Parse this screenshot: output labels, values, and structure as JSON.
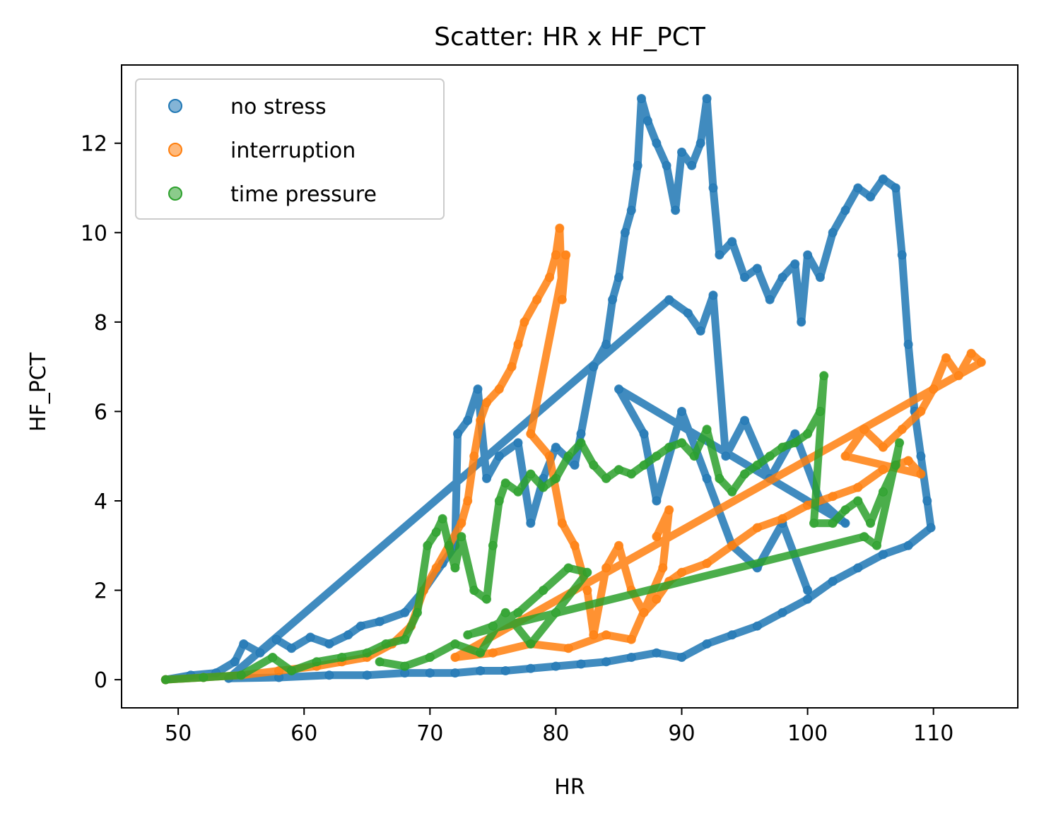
{
  "chart_data": {
    "type": "scatter",
    "title": "Scatter: HR x HF_PCT",
    "xlabel": "HR",
    "ylabel": "HF_PCT",
    "xlim": [
      45.5,
      116.7
    ],
    "ylim": [
      -0.63,
      13.75
    ],
    "xticks": [
      50,
      60,
      70,
      80,
      90,
      100,
      110
    ],
    "yticks": [
      0,
      2,
      4,
      6,
      8,
      10,
      12
    ],
    "grid": false,
    "legend_position": "upper-left",
    "series": [
      {
        "name": "no stress",
        "color": "#1f77b4",
        "points": [
          [
            49.0,
            0.0
          ],
          [
            51.0,
            0.1
          ],
          [
            53.0,
            0.15
          ],
          [
            54.5,
            0.4
          ],
          [
            55.2,
            0.8
          ],
          [
            56.5,
            0.6
          ],
          [
            57.8,
            0.9
          ],
          [
            59.0,
            0.7
          ],
          [
            60.5,
            0.95
          ],
          [
            62.0,
            0.8
          ],
          [
            63.5,
            1.0
          ],
          [
            64.5,
            1.2
          ],
          [
            66.0,
            1.3
          ],
          [
            68.0,
            1.5
          ],
          [
            69.5,
            2.0
          ],
          [
            71.0,
            2.6
          ],
          [
            72.0,
            3.0
          ],
          [
            72.2,
            5.5
          ],
          [
            73.0,
            5.8
          ],
          [
            73.8,
            6.5
          ],
          [
            74.5,
            4.5
          ],
          [
            75.5,
            5.0
          ],
          [
            77.0,
            5.3
          ],
          [
            78.0,
            3.5
          ],
          [
            79.0,
            4.5
          ],
          [
            80.0,
            5.2
          ],
          [
            81.5,
            4.8
          ],
          [
            82.0,
            5.5
          ],
          [
            83.0,
            7.0
          ],
          [
            84.0,
            7.5
          ],
          [
            84.5,
            8.5
          ],
          [
            85.0,
            9.0
          ],
          [
            85.5,
            10.0
          ],
          [
            86.0,
            10.5
          ],
          [
            86.5,
            11.5
          ],
          [
            86.8,
            13.0
          ],
          [
            87.3,
            12.5
          ],
          [
            88.0,
            12.0
          ],
          [
            88.8,
            11.5
          ],
          [
            89.5,
            10.5
          ],
          [
            90.0,
            11.8
          ],
          [
            90.8,
            11.5
          ],
          [
            91.5,
            12.0
          ],
          [
            92.0,
            13.0
          ],
          [
            92.5,
            11.0
          ],
          [
            93.0,
            9.5
          ],
          [
            94.0,
            9.8
          ],
          [
            95.0,
            9.0
          ],
          [
            96.0,
            9.2
          ],
          [
            97.0,
            8.5
          ],
          [
            98.0,
            9.0
          ],
          [
            99.0,
            9.3
          ],
          [
            99.5,
            8.0
          ],
          [
            100.0,
            9.5
          ],
          [
            101.0,
            9.0
          ],
          [
            102.0,
            10.0
          ],
          [
            103.0,
            10.5
          ],
          [
            104.0,
            11.0
          ],
          [
            105.0,
            10.8
          ],
          [
            106.0,
            11.2
          ],
          [
            107.0,
            11.0
          ],
          [
            107.5,
            9.5
          ],
          [
            108.0,
            7.5
          ],
          [
            108.5,
            6.0
          ],
          [
            109.0,
            5.0
          ],
          [
            109.5,
            4.0
          ],
          [
            109.8,
            3.4
          ],
          [
            108.0,
            3.0
          ],
          [
            106.0,
            2.8
          ],
          [
            104.0,
            2.5
          ],
          [
            102.0,
            2.2
          ],
          [
            100.0,
            1.8
          ],
          [
            98.0,
            1.5
          ],
          [
            96.0,
            1.2
          ],
          [
            94.0,
            1.0
          ],
          [
            92.0,
            0.8
          ],
          [
            90.0,
            0.5
          ],
          [
            88.0,
            0.6
          ],
          [
            86.0,
            0.5
          ],
          [
            84.0,
            0.4
          ],
          [
            82.0,
            0.35
          ],
          [
            80.0,
            0.3
          ],
          [
            78.0,
            0.25
          ],
          [
            76.0,
            0.2
          ],
          [
            74.0,
            0.2
          ],
          [
            72.0,
            0.15
          ],
          [
            70.0,
            0.15
          ],
          [
            68.0,
            0.15
          ],
          [
            65.0,
            0.1
          ],
          [
            62.0,
            0.1
          ],
          [
            58.0,
            0.05
          ],
          [
            54.0,
            0.03
          ],
          [
            89.0,
            8.5
          ],
          [
            90.5,
            8.2
          ],
          [
            91.5,
            7.8
          ],
          [
            92.5,
            8.6
          ],
          [
            93.5,
            5.0
          ],
          [
            95.0,
            5.8
          ],
          [
            97.0,
            4.5
          ],
          [
            99.0,
            5.5
          ],
          [
            101.0,
            4.0
          ],
          [
            103.0,
            3.5
          ],
          [
            85.0,
            6.5
          ],
          [
            87.0,
            5.5
          ],
          [
            88.0,
            4.0
          ],
          [
            90.0,
            6.0
          ],
          [
            92.0,
            4.5
          ],
          [
            94.0,
            3.0
          ],
          [
            96.0,
            2.5
          ],
          [
            98.0,
            3.5
          ],
          [
            100.0,
            2.0
          ]
        ]
      },
      {
        "name": "interruption",
        "color": "#ff7f0e",
        "points": [
          [
            49.0,
            0.0
          ],
          [
            52.0,
            0.05
          ],
          [
            55.0,
            0.1
          ],
          [
            58.0,
            0.2
          ],
          [
            61.0,
            0.3
          ],
          [
            63.0,
            0.4
          ],
          [
            65.0,
            0.5
          ],
          [
            67.0,
            0.8
          ],
          [
            68.5,
            1.2
          ],
          [
            69.5,
            2.0
          ],
          [
            70.5,
            2.5
          ],
          [
            71.5,
            3.0
          ],
          [
            72.5,
            3.5
          ],
          [
            73.0,
            4.0
          ],
          [
            73.5,
            5.0
          ],
          [
            74.0,
            5.8
          ],
          [
            74.5,
            6.2
          ],
          [
            75.5,
            6.5
          ],
          [
            76.5,
            7.0
          ],
          [
            77.0,
            7.5
          ],
          [
            77.5,
            8.0
          ],
          [
            78.5,
            8.5
          ],
          [
            79.5,
            9.0
          ],
          [
            80.0,
            9.5
          ],
          [
            80.3,
            10.1
          ],
          [
            80.5,
            8.5
          ],
          [
            80.8,
            9.5
          ],
          [
            78.0,
            5.5
          ],
          [
            79.5,
            5.0
          ],
          [
            80.5,
            3.5
          ],
          [
            81.5,
            3.0
          ],
          [
            82.5,
            2.0
          ],
          [
            83.0,
            1.0
          ],
          [
            84.0,
            2.5
          ],
          [
            85.0,
            3.0
          ],
          [
            86.0,
            2.0
          ],
          [
            87.0,
            1.5
          ],
          [
            88.0,
            1.8
          ],
          [
            89.0,
            2.2
          ],
          [
            90.0,
            2.4
          ],
          [
            92.0,
            2.6
          ],
          [
            94.0,
            3.0
          ],
          [
            96.0,
            3.4
          ],
          [
            98.0,
            3.6
          ],
          [
            100.0,
            3.9
          ],
          [
            102.0,
            4.1
          ],
          [
            104.0,
            4.3
          ],
          [
            106.0,
            4.7
          ],
          [
            108.0,
            4.9
          ],
          [
            109.0,
            4.6
          ],
          [
            103.0,
            5.0
          ],
          [
            104.5,
            5.6
          ],
          [
            106.0,
            5.2
          ],
          [
            107.5,
            5.6
          ],
          [
            109.0,
            6.0
          ],
          [
            110.0,
            6.5
          ],
          [
            111.0,
            7.2
          ],
          [
            112.0,
            6.8
          ],
          [
            113.0,
            7.3
          ],
          [
            113.8,
            7.1
          ],
          [
            72.0,
            0.5
          ],
          [
            75.0,
            0.6
          ],
          [
            78.0,
            0.8
          ],
          [
            81.0,
            0.7
          ],
          [
            84.0,
            1.0
          ],
          [
            86.0,
            0.9
          ],
          [
            88.5,
            2.5
          ],
          [
            89.0,
            3.8
          ],
          [
            88.0,
            3.2
          ]
        ]
      },
      {
        "name": "time pressure",
        "color": "#2ca02c",
        "points": [
          [
            49.0,
            0.0
          ],
          [
            52.0,
            0.05
          ],
          [
            55.0,
            0.1
          ],
          [
            57.5,
            0.5
          ],
          [
            59.0,
            0.2
          ],
          [
            61.0,
            0.4
          ],
          [
            63.0,
            0.5
          ],
          [
            65.0,
            0.6
          ],
          [
            66.5,
            0.8
          ],
          [
            68.0,
            0.9
          ],
          [
            69.0,
            1.5
          ],
          [
            69.8,
            3.0
          ],
          [
            70.5,
            3.3
          ],
          [
            71.0,
            3.6
          ],
          [
            71.5,
            3.0
          ],
          [
            72.0,
            2.5
          ],
          [
            72.5,
            3.2
          ],
          [
            73.5,
            2.0
          ],
          [
            74.5,
            1.8
          ],
          [
            75.0,
            3.0
          ],
          [
            75.5,
            4.0
          ],
          [
            76.0,
            4.4
          ],
          [
            77.0,
            4.2
          ],
          [
            78.0,
            4.6
          ],
          [
            79.0,
            4.3
          ],
          [
            80.0,
            4.5
          ],
          [
            81.0,
            5.0
          ],
          [
            82.0,
            5.3
          ],
          [
            83.0,
            4.8
          ],
          [
            84.0,
            4.5
          ],
          [
            85.0,
            4.7
          ],
          [
            86.0,
            4.6
          ],
          [
            87.0,
            4.8
          ],
          [
            88.0,
            5.0
          ],
          [
            89.0,
            5.2
          ],
          [
            90.0,
            5.3
          ],
          [
            91.0,
            5.0
          ],
          [
            92.0,
            5.6
          ],
          [
            93.0,
            4.5
          ],
          [
            94.0,
            4.2
          ],
          [
            95.0,
            4.6
          ],
          [
            96.0,
            4.8
          ],
          [
            97.0,
            5.0
          ],
          [
            98.0,
            5.2
          ],
          [
            99.0,
            5.3
          ],
          [
            100.0,
            5.5
          ],
          [
            101.0,
            6.0
          ],
          [
            101.3,
            6.8
          ],
          [
            100.5,
            3.5
          ],
          [
            102.0,
            3.5
          ],
          [
            103.0,
            3.8
          ],
          [
            104.0,
            4.0
          ],
          [
            105.0,
            3.5
          ],
          [
            106.0,
            4.2
          ],
          [
            107.0,
            4.8
          ],
          [
            107.3,
            5.3
          ],
          [
            105.5,
            3.0
          ],
          [
            104.5,
            3.2
          ],
          [
            73.0,
            1.0
          ],
          [
            75.0,
            1.2
          ],
          [
            77.0,
            1.5
          ],
          [
            79.0,
            2.0
          ],
          [
            81.0,
            2.5
          ],
          [
            82.5,
            2.4
          ],
          [
            80.0,
            1.5
          ],
          [
            78.0,
            0.8
          ],
          [
            76.0,
            1.5
          ],
          [
            74.0,
            0.6
          ],
          [
            72.0,
            0.8
          ],
          [
            70.0,
            0.5
          ],
          [
            68.0,
            0.3
          ],
          [
            66.0,
            0.4
          ]
        ]
      }
    ]
  }
}
